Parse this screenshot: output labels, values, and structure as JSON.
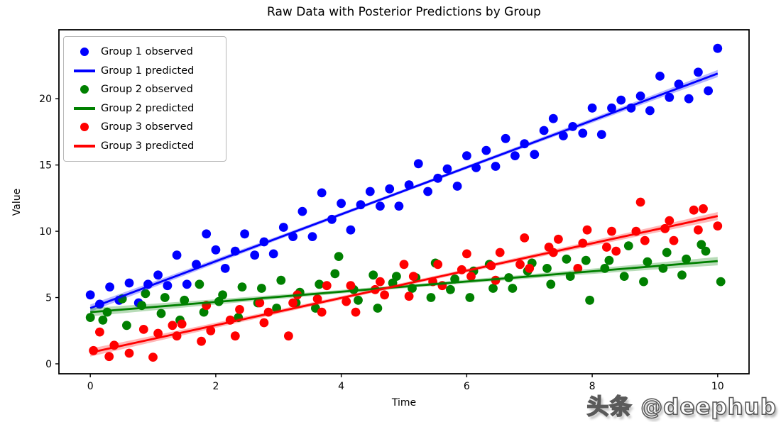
{
  "title": "Raw Data with Posterior Predictions by Group",
  "watermark": "头条 @deephub",
  "chart_data": {
    "type": "scatter",
    "title": "Raw Data with Posterior Predictions by Group",
    "xlabel": "Time",
    "ylabel": "Value",
    "xlim": [
      -0.5,
      10.5
    ],
    "ylim": [
      -0.75,
      25.2
    ],
    "xticks": [
      0,
      2,
      4,
      6,
      8,
      10
    ],
    "yticks": [
      0,
      5,
      10,
      15,
      20
    ],
    "grid": false,
    "legend": {
      "position": "upper left",
      "entries": [
        {
          "label": "Group 1 observed",
          "marker": "dot",
          "color": "#0000ff"
        },
        {
          "label": "Group 1 predicted",
          "marker": "line",
          "color": "#0000ff"
        },
        {
          "label": "Group 2 observed",
          "marker": "dot",
          "color": "#008000"
        },
        {
          "label": "Group 2 predicted",
          "marker": "line",
          "color": "#008000"
        },
        {
          "label": "Group 3 observed",
          "marker": "dot",
          "color": "#ff0000"
        },
        {
          "label": "Group 3 predicted",
          "marker": "line",
          "color": "#ff0000"
        }
      ]
    },
    "series": [
      {
        "name": "Group 1 observed",
        "kind": "scatter",
        "color": "#0000ff",
        "x": [
          0,
          0.15,
          0.31,
          0.46,
          0.62,
          0.77,
          0.92,
          1.08,
          1.23,
          1.38,
          1.54,
          1.69,
          1.85,
          2.0,
          2.15,
          2.31,
          2.46,
          2.62,
          2.77,
          2.92,
          3.08,
          3.23,
          3.38,
          3.54,
          3.69,
          3.85,
          4.0,
          4.15,
          4.31,
          4.46,
          4.62,
          4.77,
          4.92,
          5.08,
          5.23,
          5.38,
          5.54,
          5.69,
          5.85,
          6.0,
          6.15,
          6.31,
          6.46,
          6.62,
          6.77,
          6.92,
          7.08,
          7.23,
          7.38,
          7.54,
          7.69,
          7.85,
          8.0,
          8.15,
          8.31,
          8.46,
          8.62,
          8.77,
          8.92,
          9.08,
          9.23,
          9.38,
          9.54,
          9.69,
          9.85,
          10.0
        ],
        "y": [
          5.2,
          4.5,
          5.8,
          4.8,
          6.1,
          4.6,
          6.0,
          6.7,
          5.9,
          8.2,
          6.0,
          7.5,
          9.8,
          8.6,
          7.2,
          8.5,
          9.8,
          8.2,
          9.2,
          8.3,
          10.3,
          9.6,
          11.5,
          9.6,
          12.9,
          10.9,
          12.1,
          10.1,
          12.0,
          13.0,
          11.9,
          13.2,
          11.9,
          13.5,
          15.1,
          13.0,
          14.0,
          14.7,
          13.4,
          15.7,
          14.8,
          16.1,
          14.9,
          17.0,
          15.7,
          16.6,
          15.8,
          17.6,
          18.5,
          17.2,
          17.9,
          17.4,
          19.3,
          17.3,
          19.3,
          19.9,
          19.3,
          20.2,
          19.1,
          21.7,
          20.1,
          21.1,
          20.0,
          22.0,
          20.6,
          23.8
        ]
      },
      {
        "name": "Group 1 predicted",
        "kind": "line",
        "color": "#0000ff",
        "intercept": 4.2,
        "slope": 1.77,
        "x0": 0,
        "x1": 10,
        "y0": 4.2,
        "y1": 21.9,
        "band_halfwidth_mid": 0.12,
        "band_halfwidth_end": 0.27
      },
      {
        "name": "Group 2 observed",
        "kind": "scatter",
        "color": "#008000",
        "x": [
          0.0,
          0.2,
          0.27,
          0.51,
          0.58,
          0.82,
          0.88,
          1.13,
          1.19,
          1.43,
          1.5,
          1.74,
          1.81,
          2.05,
          2.11,
          2.36,
          2.42,
          2.67,
          2.73,
          2.97,
          3.04,
          3.28,
          3.34,
          3.59,
          3.65,
          3.9,
          3.96,
          4.2,
          4.27,
          4.51,
          4.58,
          4.82,
          4.88,
          5.13,
          5.19,
          5.43,
          5.5,
          5.74,
          5.81,
          6.05,
          6.11,
          6.36,
          6.42,
          6.67,
          6.73,
          6.97,
          7.04,
          7.28,
          7.34,
          7.59,
          7.65,
          7.9,
          7.96,
          8.2,
          8.27,
          8.51,
          8.58,
          8.82,
          8.88,
          9.13,
          9.19,
          9.43,
          9.5,
          9.74,
          9.81,
          10.05
        ],
        "y": [
          3.5,
          3.3,
          3.9,
          4.9,
          2.9,
          4.4,
          5.3,
          3.8,
          5.0,
          3.3,
          4.8,
          6.0,
          3.9,
          4.7,
          5.2,
          3.5,
          5.8,
          4.6,
          5.7,
          4.2,
          6.3,
          4.6,
          5.4,
          4.2,
          6.0,
          6.8,
          8.1,
          5.6,
          4.8,
          6.7,
          4.2,
          6.1,
          6.6,
          5.7,
          6.5,
          5.0,
          7.6,
          5.6,
          6.4,
          5.0,
          7.0,
          7.5,
          5.7,
          6.5,
          5.7,
          7.0,
          7.6,
          7.2,
          6.0,
          7.9,
          6.6,
          7.8,
          4.8,
          7.2,
          7.8,
          6.6,
          8.9,
          6.2,
          7.7,
          7.2,
          8.4,
          6.7,
          7.9,
          9.0,
          8.5,
          6.2
        ]
      },
      {
        "name": "Group 2 predicted",
        "kind": "line",
        "color": "#008000",
        "intercept": 3.9,
        "slope": 0.385,
        "x0": 0,
        "x1": 10,
        "y0": 3.9,
        "y1": 7.75,
        "band_halfwidth_mid": 0.13,
        "band_halfwidth_end": 0.32
      },
      {
        "name": "Group 3 observed",
        "kind": "scatter",
        "color": "#ff0000",
        "x": [
          0.05,
          0.15,
          0.3,
          0.38,
          0.62,
          0.85,
          1.0,
          1.08,
          1.31,
          1.38,
          1.46,
          1.77,
          1.85,
          1.92,
          2.23,
          2.31,
          2.38,
          2.7,
          2.77,
          2.84,
          3.16,
          3.23,
          3.3,
          3.62,
          3.69,
          3.77,
          4.08,
          4.15,
          4.23,
          4.54,
          4.62,
          4.69,
          5.0,
          5.08,
          5.15,
          5.46,
          5.54,
          5.61,
          5.92,
          6.0,
          6.07,
          6.39,
          6.46,
          6.53,
          6.85,
          6.92,
          7.0,
          7.31,
          7.38,
          7.46,
          7.77,
          7.85,
          7.92,
          8.23,
          8.31,
          8.38,
          8.7,
          8.77,
          8.84,
          9.16,
          9.23,
          9.3,
          9.62,
          9.69,
          9.77,
          10.0
        ],
        "y": [
          1.0,
          2.4,
          0.55,
          1.4,
          0.8,
          2.6,
          0.5,
          2.3,
          2.9,
          2.1,
          3.0,
          1.7,
          4.4,
          2.5,
          3.3,
          2.1,
          4.1,
          4.6,
          3.1,
          3.9,
          2.1,
          4.6,
          5.2,
          4.9,
          3.9,
          5.9,
          4.7,
          5.9,
          3.9,
          5.6,
          6.2,
          5.2,
          7.5,
          5.1,
          6.6,
          6.2,
          7.5,
          5.9,
          7.1,
          8.3,
          6.6,
          7.4,
          6.3,
          8.4,
          7.5,
          9.5,
          7.2,
          8.8,
          8.4,
          9.4,
          7.2,
          9.1,
          10.1,
          8.8,
          10.0,
          8.5,
          10.0,
          12.2,
          9.3,
          10.2,
          10.8,
          9.3,
          11.6,
          10.1,
          11.7,
          10.4
        ]
      },
      {
        "name": "Group 3 predicted",
        "kind": "line",
        "color": "#ff0000",
        "intercept": 0.85,
        "slope": 1.03,
        "x0": 0,
        "x1": 10,
        "y0": 0.85,
        "y1": 11.15,
        "band_halfwidth_mid": 0.13,
        "band_halfwidth_end": 0.3
      }
    ]
  }
}
